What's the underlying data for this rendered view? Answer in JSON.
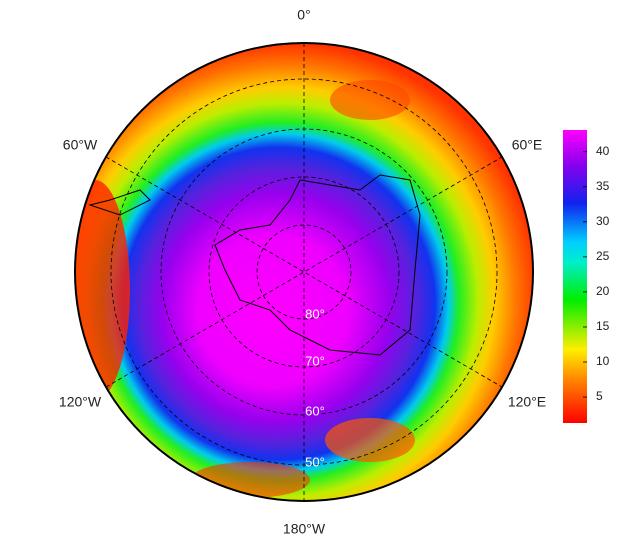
{
  "map": {
    "longitude_labels": [
      "0°",
      "60°E",
      "120°E",
      "180°W",
      "120°W",
      "60°W"
    ],
    "latitude_labels": [
      "80°",
      "70°",
      "60°",
      "50°"
    ]
  },
  "colorbar": {
    "range": [
      1.3,
      43.1
    ],
    "ticks": [
      5,
      10,
      15,
      20,
      25,
      30,
      35,
      40
    ]
  }
}
